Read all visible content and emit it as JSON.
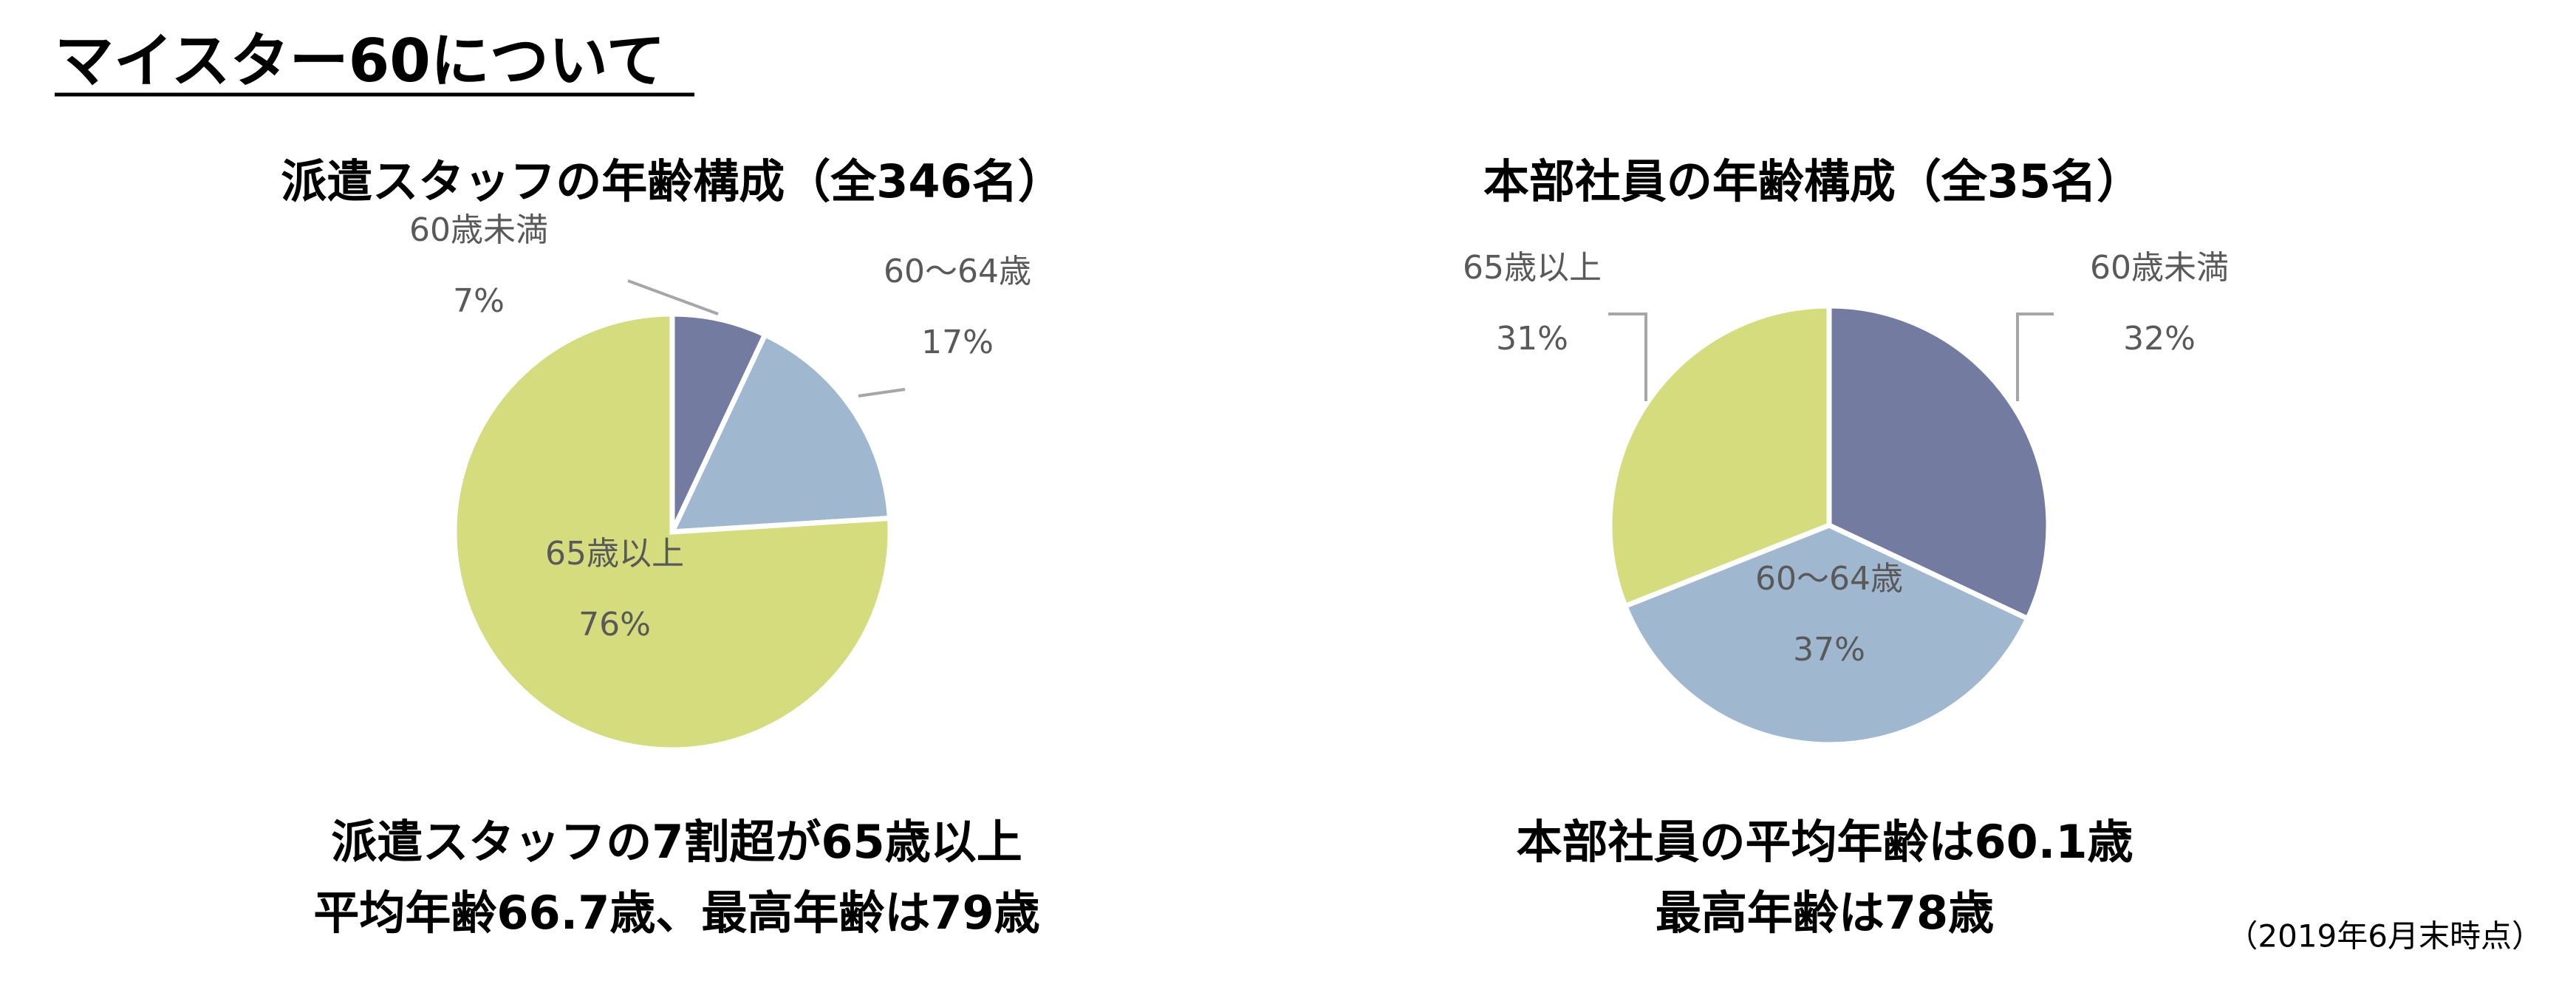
{
  "title": "マイスター60について",
  "chart_data": [
    {
      "type": "pie",
      "title": "派遣スタッフの年齢構成（全346名）",
      "categories": [
        "60歳未満",
        "60〜64歳",
        "65歳以上"
      ],
      "values": [
        7,
        17,
        76
      ],
      "value_labels": [
        "7%",
        "17%",
        "76%"
      ],
      "colors": [
        "#737ba0",
        "#a0b8cf",
        "#d4dc7e"
      ]
    },
    {
      "type": "pie",
      "title": "本部社員の年齢構成（全35名）",
      "categories": [
        "60歳未満",
        "60〜64歳",
        "65歳以上"
      ],
      "values": [
        32,
        37,
        31
      ],
      "value_labels": [
        "32%",
        "37%",
        "31%"
      ],
      "colors": [
        "#737ba0",
        "#a0b8cf",
        "#d4dc7e"
      ]
    }
  ],
  "captions": [
    [
      "派遣スタッフの7割超が65歳以上",
      "平均年齢66.7歳、最高年齢は79歳"
    ],
    [
      "本部社員の平均年齢は60.1歳",
      "最高年齢は78歳"
    ]
  ],
  "footnote": "（2019年6月末時点）"
}
